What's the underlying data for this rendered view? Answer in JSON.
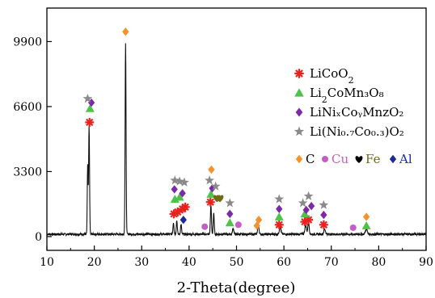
{
  "chart_data": {
    "type": "line",
    "title": "",
    "xlabel": "2-Theta(degree)",
    "ylabel": "",
    "xlim": [
      10,
      90
    ],
    "ylim": [
      -700,
      11600
    ],
    "x_ticks": [
      10,
      20,
      30,
      40,
      50,
      60,
      70,
      80,
      90
    ],
    "y_ticks": [
      0,
      3300,
      6600,
      9900
    ],
    "grid": false,
    "legend_position": "right",
    "background_level": 120,
    "peaks": [
      {
        "x": 18.6,
        "y": 3500,
        "w": 0.12
      },
      {
        "x": 18.9,
        "y": 5500,
        "w": 0.14
      },
      {
        "x": 26.6,
        "y": 9700,
        "w": 0.14
      },
      {
        "x": 36.7,
        "y": 600,
        "w": 0.15
      },
      {
        "x": 37.4,
        "y": 700,
        "w": 0.15
      },
      {
        "x": 38.3,
        "y": 500,
        "w": 0.15
      },
      {
        "x": 44.6,
        "y": 1500,
        "w": 0.15
      },
      {
        "x": 45.2,
        "y": 1050,
        "w": 0.15
      },
      {
        "x": 49.3,
        "y": 300,
        "w": 0.2
      },
      {
        "x": 54.6,
        "y": 500,
        "w": 0.2
      },
      {
        "x": 59.2,
        "y": 350,
        "w": 0.25
      },
      {
        "x": 64.6,
        "y": 450,
        "w": 0.25
      },
      {
        "x": 65.2,
        "y": 600,
        "w": 0.2
      },
      {
        "x": 68.6,
        "y": 250,
        "w": 0.25
      },
      {
        "x": 77.4,
        "y": 250,
        "w": 0.3
      }
    ],
    "legend": [
      {
        "marker": "asterisk",
        "color": "#e8231f",
        "text_main": "LiCoO",
        "text_sub": "2",
        "text_rest": ""
      },
      {
        "marker": "triangle",
        "color": "#4fc24a",
        "text_main": "Li",
        "text_sub": "2",
        "text_rest": "CoMn₃O₈"
      },
      {
        "marker": "diamond",
        "color": "#7a2aa6",
        "text_main": "LiNiₓCoᵧMnᴢO₂",
        "text_sub": "",
        "text_rest": ""
      },
      {
        "marker": "star",
        "color": "#8a8a8a",
        "text_main": "Li(Ni₀.₇Co₀.₃)O₂",
        "text_sub": "",
        "text_rest": ""
      }
    ],
    "legend_phases": [
      {
        "marker": "diamond",
        "color": "#f5922a",
        "label": "C",
        "label_color": "#000000"
      },
      {
        "marker": "circle",
        "color": "#c45ec6",
        "label": "Cu",
        "label_color": "#c45ec6"
      },
      {
        "marker": "heart",
        "color": "#000000",
        "label": "Fe",
        "label_color": "#6f6a13"
      },
      {
        "marker": "diamond",
        "color": "#1d2a9a",
        "label": "Al",
        "label_color": "#1d2a9a"
      }
    ],
    "markers": [
      {
        "phase": "asterisk",
        "color": "#e8231f",
        "x": 19.0,
        "y": 5800
      },
      {
        "phase": "triangle",
        "color": "#4fc24a",
        "x": 19.1,
        "y": 6500
      },
      {
        "phase": "diamond",
        "color": "#7a2aa6",
        "x": 19.4,
        "y": 6800
      },
      {
        "phase": "star",
        "color": "#8a8a8a",
        "x": 18.6,
        "y": 7000
      },
      {
        "phase": "diamond",
        "color": "#f5922a",
        "x": 26.6,
        "y": 10400
      },
      {
        "phase": "asterisk",
        "color": "#e8231f",
        "x": 36.8,
        "y": 1150
      },
      {
        "phase": "asterisk",
        "color": "#e8231f",
        "x": 37.6,
        "y": 1250
      },
      {
        "phase": "asterisk",
        "color": "#e8231f",
        "x": 38.6,
        "y": 1400
      },
      {
        "phase": "asterisk",
        "color": "#e8231f",
        "x": 39.2,
        "y": 1500
      },
      {
        "phase": "triangle",
        "color": "#4fc24a",
        "x": 37.0,
        "y": 1900
      },
      {
        "phase": "triangle",
        "color": "#4fc24a",
        "x": 38.0,
        "y": 2000
      },
      {
        "phase": "diamond",
        "color": "#7a2aa6",
        "x": 36.9,
        "y": 2400
      },
      {
        "phase": "diamond",
        "color": "#7a2aa6",
        "x": 38.6,
        "y": 2200
      },
      {
        "phase": "star",
        "color": "#8a8a8a",
        "x": 37.0,
        "y": 2850
      },
      {
        "phase": "star",
        "color": "#8a8a8a",
        "x": 38.0,
        "y": 2800
      },
      {
        "phase": "star",
        "color": "#8a8a8a",
        "x": 39.0,
        "y": 2750
      },
      {
        "phase": "diamond",
        "color": "#1d2a9a",
        "x": 38.8,
        "y": 850
      },
      {
        "phase": "asterisk",
        "color": "#e8231f",
        "x": 44.5,
        "y": 1750
      },
      {
        "phase": "triangle",
        "color": "#4fc24a",
        "x": 44.6,
        "y": 2150
      },
      {
        "phase": "diamond",
        "color": "#7a2aa6",
        "x": 44.9,
        "y": 2450
      },
      {
        "phase": "star",
        "color": "#8a8a8a",
        "x": 44.3,
        "y": 2850
      },
      {
        "phase": "diamond",
        "color": "#f5922a",
        "x": 44.7,
        "y": 3400
      },
      {
        "phase": "star",
        "color": "#8a8a8a",
        "x": 45.6,
        "y": 2550
      },
      {
        "phase": "heart",
        "color": "#6f6a13",
        "x": 45.9,
        "y": 1950
      },
      {
        "phase": "heart",
        "color": "#6f6a13",
        "x": 46.5,
        "y": 1950
      },
      {
        "phase": "circle",
        "color": "#c45ec6",
        "x": 43.3,
        "y": 500
      },
      {
        "phase": "triangle",
        "color": "#4fc24a",
        "x": 48.6,
        "y": 700
      },
      {
        "phase": "diamond",
        "color": "#7a2aa6",
        "x": 48.6,
        "y": 1150
      },
      {
        "phase": "star",
        "color": "#8a8a8a",
        "x": 48.6,
        "y": 1700
      },
      {
        "phase": "circle",
        "color": "#c45ec6",
        "x": 50.4,
        "y": 600
      },
      {
        "phase": "diamond",
        "color": "#f5922a",
        "x": 54.3,
        "y": 550
      },
      {
        "phase": "diamond",
        "color": "#f5922a",
        "x": 54.7,
        "y": 850
      },
      {
        "phase": "asterisk",
        "color": "#e8231f",
        "x": 59.0,
        "y": 600
      },
      {
        "phase": "triangle",
        "color": "#4fc24a",
        "x": 59.0,
        "y": 1000
      },
      {
        "phase": "diamond",
        "color": "#7a2aa6",
        "x": 59.0,
        "y": 1400
      },
      {
        "phase": "star",
        "color": "#8a8a8a",
        "x": 59.0,
        "y": 1900
      },
      {
        "phase": "asterisk",
        "color": "#e8231f",
        "x": 64.4,
        "y": 750
      },
      {
        "phase": "asterisk",
        "color": "#e8231f",
        "x": 65.2,
        "y": 850
      },
      {
        "phase": "triangle",
        "color": "#4fc24a",
        "x": 64.4,
        "y": 1150
      },
      {
        "phase": "diamond",
        "color": "#7a2aa6",
        "x": 64.7,
        "y": 1350
      },
      {
        "phase": "star",
        "color": "#8a8a8a",
        "x": 64.0,
        "y": 1700
      },
      {
        "phase": "star",
        "color": "#8a8a8a",
        "x": 65.2,
        "y": 2050
      },
      {
        "phase": "diamond",
        "color": "#7a2aa6",
        "x": 65.8,
        "y": 1550
      },
      {
        "phase": "asterisk",
        "color": "#e8231f",
        "x": 68.4,
        "y": 600
      },
      {
        "phase": "diamond",
        "color": "#7a2aa6",
        "x": 68.4,
        "y": 1100
      },
      {
        "phase": "star",
        "color": "#8a8a8a",
        "x": 68.4,
        "y": 1600
      },
      {
        "phase": "circle",
        "color": "#c45ec6",
        "x": 74.6,
        "y": 450
      },
      {
        "phase": "triangle",
        "color": "#4fc24a",
        "x": 77.4,
        "y": 550
      },
      {
        "phase": "diamond",
        "color": "#f5922a",
        "x": 77.4,
        "y": 1000
      }
    ]
  }
}
